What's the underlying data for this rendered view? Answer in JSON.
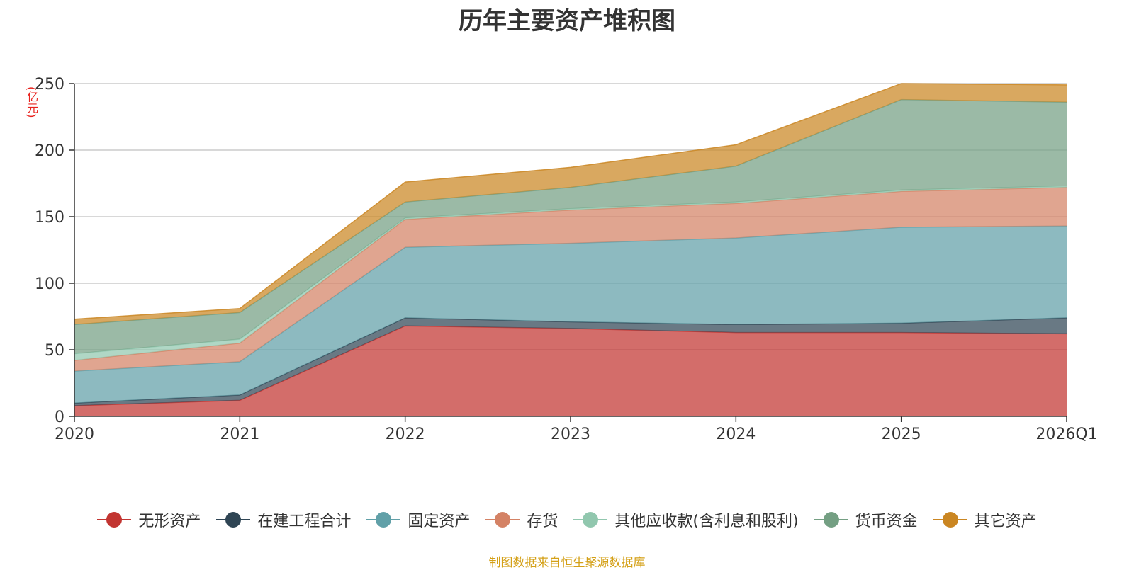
{
  "chart_data": {
    "type": "area",
    "stacked": true,
    "title": "历年主要资产堆积图",
    "unit_label": "(亿元)",
    "categories": [
      "2020",
      "2021",
      "2022",
      "2023",
      "2024",
      "2025",
      "2026Q1"
    ],
    "ylim": [
      0,
      250
    ],
    "yticks": [
      0,
      50,
      100,
      150,
      200,
      250
    ],
    "grid": true,
    "legend_position": "bottom",
    "series": [
      {
        "name": "无形资产",
        "color": "#c23531",
        "values": [
          8,
          12,
          68,
          66,
          63,
          63,
          62
        ]
      },
      {
        "name": "在建工程合计",
        "color": "#2f4554",
        "values": [
          2,
          4,
          6,
          5,
          6,
          7,
          12
        ]
      },
      {
        "name": "固定资产",
        "color": "#61a0a8",
        "values": [
          24,
          25,
          53,
          59,
          65,
          72,
          69
        ]
      },
      {
        "name": "存货",
        "color": "#d48265",
        "values": [
          8,
          14,
          21,
          25,
          26,
          27,
          29
        ]
      },
      {
        "name": "其他应收款(含利息和股利)",
        "color": "#91c7ae",
        "values": [
          5,
          3,
          1,
          1,
          1,
          1,
          1
        ]
      },
      {
        "name": "货币资金",
        "color": "#749f83",
        "values": [
          22,
          20,
          12,
          16,
          27,
          68,
          63
        ]
      },
      {
        "name": "其它资产",
        "color": "#ca8622",
        "values": [
          4,
          3,
          15,
          15,
          16,
          15,
          13
        ]
      }
    ]
  },
  "source_note": "制图数据来自恒生聚源数据库"
}
